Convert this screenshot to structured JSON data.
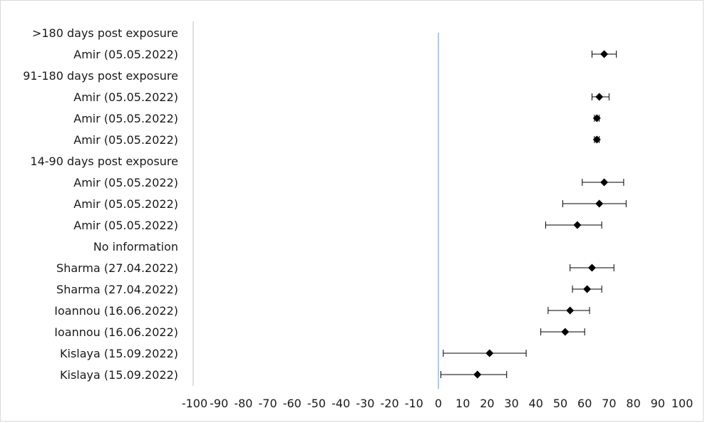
{
  "chart_data": {
    "type": "forest",
    "title": "",
    "xlabel": "",
    "ylabel": "",
    "xlim": [
      -100,
      100
    ],
    "x_ticks": [
      -100,
      -90,
      -80,
      -70,
      -60,
      -50,
      -40,
      -30,
      -20,
      -10,
      0,
      10,
      20,
      30,
      40,
      50,
      60,
      70,
      80,
      90,
      100
    ],
    "x_tick_labels": [
      "-100",
      "-90",
      "-80",
      "-70",
      "-60",
      "-50",
      "-40",
      "-30",
      "-20",
      "-10",
      "0",
      "10",
      "20",
      "30",
      "40",
      "50",
      "60",
      "70",
      "80",
      "90",
      "100"
    ],
    "reference_line": 0,
    "grid": false,
    "colors": {
      "marker": "#000000",
      "reference_line": "#7fa7c9",
      "axis_line": "#bfbfbf"
    },
    "rows": [
      {
        "label": ">180 days post exposure",
        "is_header": true
      },
      {
        "label": "Amir (05.05.2022)",
        "estimate": 68,
        "lower": 63,
        "upper": 73
      },
      {
        "label": "91-180 days post exposure",
        "is_header": true
      },
      {
        "label": "Amir (05.05.2022)",
        "estimate": 66,
        "lower": 63,
        "upper": 70
      },
      {
        "label": "Amir (05.05.2022)",
        "estimate": 65,
        "lower": 64,
        "upper": 66
      },
      {
        "label": "Amir (05.05.2022)",
        "estimate": 65,
        "lower": 64,
        "upper": 66
      },
      {
        "label": "14-90 days post exposure",
        "is_header": true
      },
      {
        "label": "Amir (05.05.2022)",
        "estimate": 68,
        "lower": 59,
        "upper": 76
      },
      {
        "label": "Amir (05.05.2022)",
        "estimate": 66,
        "lower": 51,
        "upper": 77
      },
      {
        "label": "Amir (05.05.2022)",
        "estimate": 57,
        "lower": 44,
        "upper": 67
      },
      {
        "label": "No information",
        "is_header": true
      },
      {
        "label": "Sharma (27.04.2022)",
        "estimate": 63,
        "lower": 54,
        "upper": 72
      },
      {
        "label": "Sharma (27.04.2022)",
        "estimate": 61,
        "lower": 55,
        "upper": 67
      },
      {
        "label": "Ioannou (16.06.2022)",
        "estimate": 54,
        "lower": 45,
        "upper": 62
      },
      {
        "label": "Ioannou (16.06.2022)",
        "estimate": 52,
        "lower": 42,
        "upper": 60
      },
      {
        "label": "Kislaya (15.09.2022)",
        "estimate": 21,
        "lower": 2,
        "upper": 36
      },
      {
        "label": "Kislaya (15.09.2022)",
        "estimate": 16,
        "lower": 1,
        "upper": 28
      }
    ]
  }
}
